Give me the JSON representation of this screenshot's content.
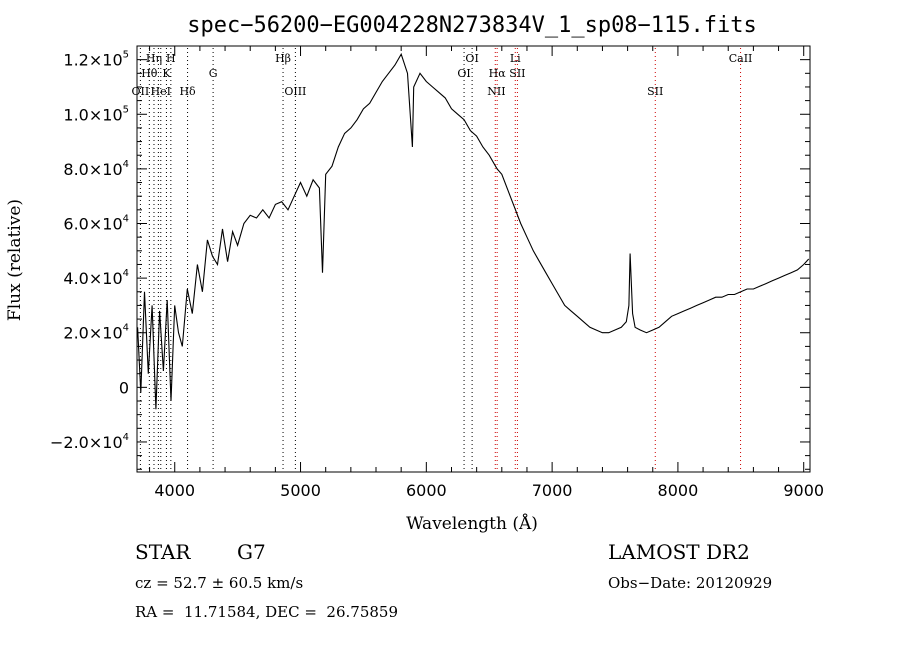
{
  "chart_data": {
    "type": "line",
    "title": "spec−56200−EG004228N273834V_1_sp08−115.fits",
    "xlabel": "Wavelength (Å)",
    "ylabel": "Flux (relative)",
    "xlim": [
      3700,
      9050
    ],
    "ylim": [
      -31000,
      125000
    ],
    "x_ticks": [
      {
        "value": 4000,
        "label": "4000"
      },
      {
        "value": 5000,
        "label": "5000"
      },
      {
        "value": 6000,
        "label": "6000"
      },
      {
        "value": 7000,
        "label": "7000"
      },
      {
        "value": 8000,
        "label": "8000"
      },
      {
        "value": 9000,
        "label": "9000"
      }
    ],
    "y_ticks": [
      {
        "value": -20000,
        "mant": "−2.0×10",
        "exp": "4"
      },
      {
        "value": 0,
        "mant": "0",
        "exp": ""
      },
      {
        "value": 20000,
        "mant": "2.0×10",
        "exp": "4"
      },
      {
        "value": 40000,
        "mant": "4.0×10",
        "exp": "4"
      },
      {
        "value": 60000,
        "mant": "6.0×10",
        "exp": "4"
      },
      {
        "value": 80000,
        "mant": "8.0×10",
        "exp": "4"
      },
      {
        "value": 100000,
        "mant": "1.0×10",
        "exp": "5"
      },
      {
        "value": 120000,
        "mant": "1.2×10",
        "exp": "5"
      }
    ],
    "series": [
      {
        "x": [
          3705,
          3730,
          3760,
          3790,
          3820,
          3850,
          3880,
          3910,
          3940,
          3970,
          4000,
          4030,
          4060,
          4100,
          4140,
          4180,
          4220,
          4260,
          4300,
          4340,
          4380,
          4420,
          4460,
          4500,
          4550,
          4600,
          4650,
          4700,
          4750,
          4800,
          4850,
          4900,
          4950,
          5000,
          5050,
          5100,
          5150,
          5175,
          5200,
          5250,
          5300,
          5350,
          5400,
          5450,
          5500,
          5550,
          5600,
          5650,
          5700,
          5750,
          5800,
          5850,
          5889,
          5900,
          5950,
          6000,
          6050,
          6100,
          6150,
          6200,
          6250,
          6300,
          6350,
          6400,
          6450,
          6500,
          6563,
          6600,
          6650,
          6700,
          6750,
          6800,
          6850,
          6900,
          6950,
          7000,
          7050,
          7100,
          7150,
          7200,
          7250,
          7300,
          7350,
          7400,
          7450,
          7500,
          7550,
          7590,
          7610,
          7620,
          7640,
          7660,
          7700,
          7750,
          7800,
          7850,
          7900,
          7950,
          8000,
          8050,
          8100,
          8150,
          8200,
          8250,
          8300,
          8350,
          8400,
          8450,
          8500,
          8550,
          8600,
          8650,
          8700,
          8750,
          8800,
          8850,
          8900,
          8950,
          9000,
          9040
        ],
        "y": [
          22000,
          -2000,
          35000,
          5000,
          30000,
          -8000,
          28000,
          6000,
          32000,
          -5000,
          30000,
          20000,
          15000,
          36000,
          27000,
          45000,
          35000,
          54000,
          48000,
          45000,
          58000,
          46000,
          57000,
          52000,
          60000,
          63000,
          62000,
          65000,
          62000,
          67000,
          68000,
          65000,
          70000,
          75000,
          70000,
          76000,
          73000,
          42000,
          78000,
          81000,
          88000,
          93000,
          95000,
          98000,
          102000,
          104000,
          108000,
          112000,
          115000,
          118000,
          122000,
          115000,
          88000,
          110000,
          115000,
          112000,
          110000,
          108000,
          106000,
          102000,
          100000,
          98000,
          94000,
          92000,
          88000,
          85000,
          80000,
          78000,
          72000,
          66000,
          60000,
          55000,
          50000,
          46000,
          42000,
          38000,
          34000,
          30000,
          28000,
          26000,
          24000,
          22000,
          21000,
          20000,
          20000,
          21000,
          22000,
          24000,
          30000,
          49000,
          27000,
          22000,
          21000,
          20000,
          21000,
          22000,
          24000,
          26000,
          27000,
          28000,
          29000,
          30000,
          31000,
          32000,
          33000,
          33000,
          34000,
          34000,
          35000,
          36000,
          36000,
          37000,
          38000,
          39000,
          40000,
          41000,
          42000,
          43000,
          45000,
          47000
        ]
      }
    ],
    "lines": [
      {
        "x": 3727,
        "label": "OII",
        "row": 3,
        "color": "#000000",
        "anchor": "middle",
        "dx": 0
      },
      {
        "x": 3798,
        "label": "Hθ",
        "row": 2,
        "color": "#000000",
        "anchor": "middle",
        "dx": 0
      },
      {
        "x": 3835,
        "label": "Hη",
        "row": 1,
        "color": "#000000",
        "anchor": "middle",
        "dx": 0
      },
      {
        "x": 3870,
        "label": "",
        "row": 0,
        "color": "#000000",
        "anchor": "middle",
        "dx": 0
      },
      {
        "x": 3889,
        "label": "HeI",
        "row": 3,
        "color": "#000000",
        "anchor": "middle",
        "dx": 0
      },
      {
        "x": 3934,
        "label": "K",
        "row": 2,
        "color": "#000000",
        "anchor": "middle",
        "dx": 0
      },
      {
        "x": 3969,
        "label": "H",
        "row": 1,
        "color": "#000000",
        "anchor": "middle",
        "dx": 0
      },
      {
        "x": 4102,
        "label": "Hδ",
        "row": 3,
        "color": "#000000",
        "anchor": "middle",
        "dx": 0
      },
      {
        "x": 4305,
        "label": "G",
        "row": 2,
        "color": "#000000",
        "anchor": "middle",
        "dx": 0
      },
      {
        "x": 4861,
        "label": "Hβ",
        "row": 1,
        "color": "#000000",
        "anchor": "middle",
        "dx": 0
      },
      {
        "x": 4959,
        "label": "OIII",
        "row": 3,
        "color": "#000000",
        "anchor": "middle",
        "dx": 0
      },
      {
        "x": 6300,
        "label": "OI",
        "row": 2,
        "color": "#000000",
        "anchor": "middle",
        "dx": 0
      },
      {
        "x": 6364,
        "label": "OI",
        "row": 1,
        "color": "#000000",
        "anchor": "middle",
        "dx": 0
      },
      {
        "x": 6548,
        "label": "NII",
        "row": 3,
        "color": "#cc0000",
        "anchor": "start",
        "dx": -8
      },
      {
        "x": 6563,
        "label": "Hα",
        "row": 2,
        "color": "#cc0000",
        "anchor": "middle",
        "dx": 0
      },
      {
        "x": 6707,
        "label": "Li",
        "row": 1,
        "color": "#cc0000",
        "anchor": "middle",
        "dx": 0
      },
      {
        "x": 6724,
        "label": "SII",
        "row": 2,
        "color": "#cc0000",
        "anchor": "middle",
        "dx": 0
      },
      {
        "x": 7820,
        "label": "SII",
        "row": 3,
        "color": "#cc0000",
        "anchor": "middle",
        "dx": 0
      },
      {
        "x": 8498,
        "label": "CaII",
        "row": 1,
        "color": "#cc0000",
        "anchor": "middle",
        "dx": 0
      }
    ]
  },
  "info": {
    "class": "STAR",
    "subclass": "G7",
    "survey": "LAMOST DR2",
    "cz": "cz = 52.7 ± 60.5 km/s",
    "obs_date": "Obs−Date: 20120929",
    "radec": "RA =  11.71584, DEC =  26.75859"
  }
}
